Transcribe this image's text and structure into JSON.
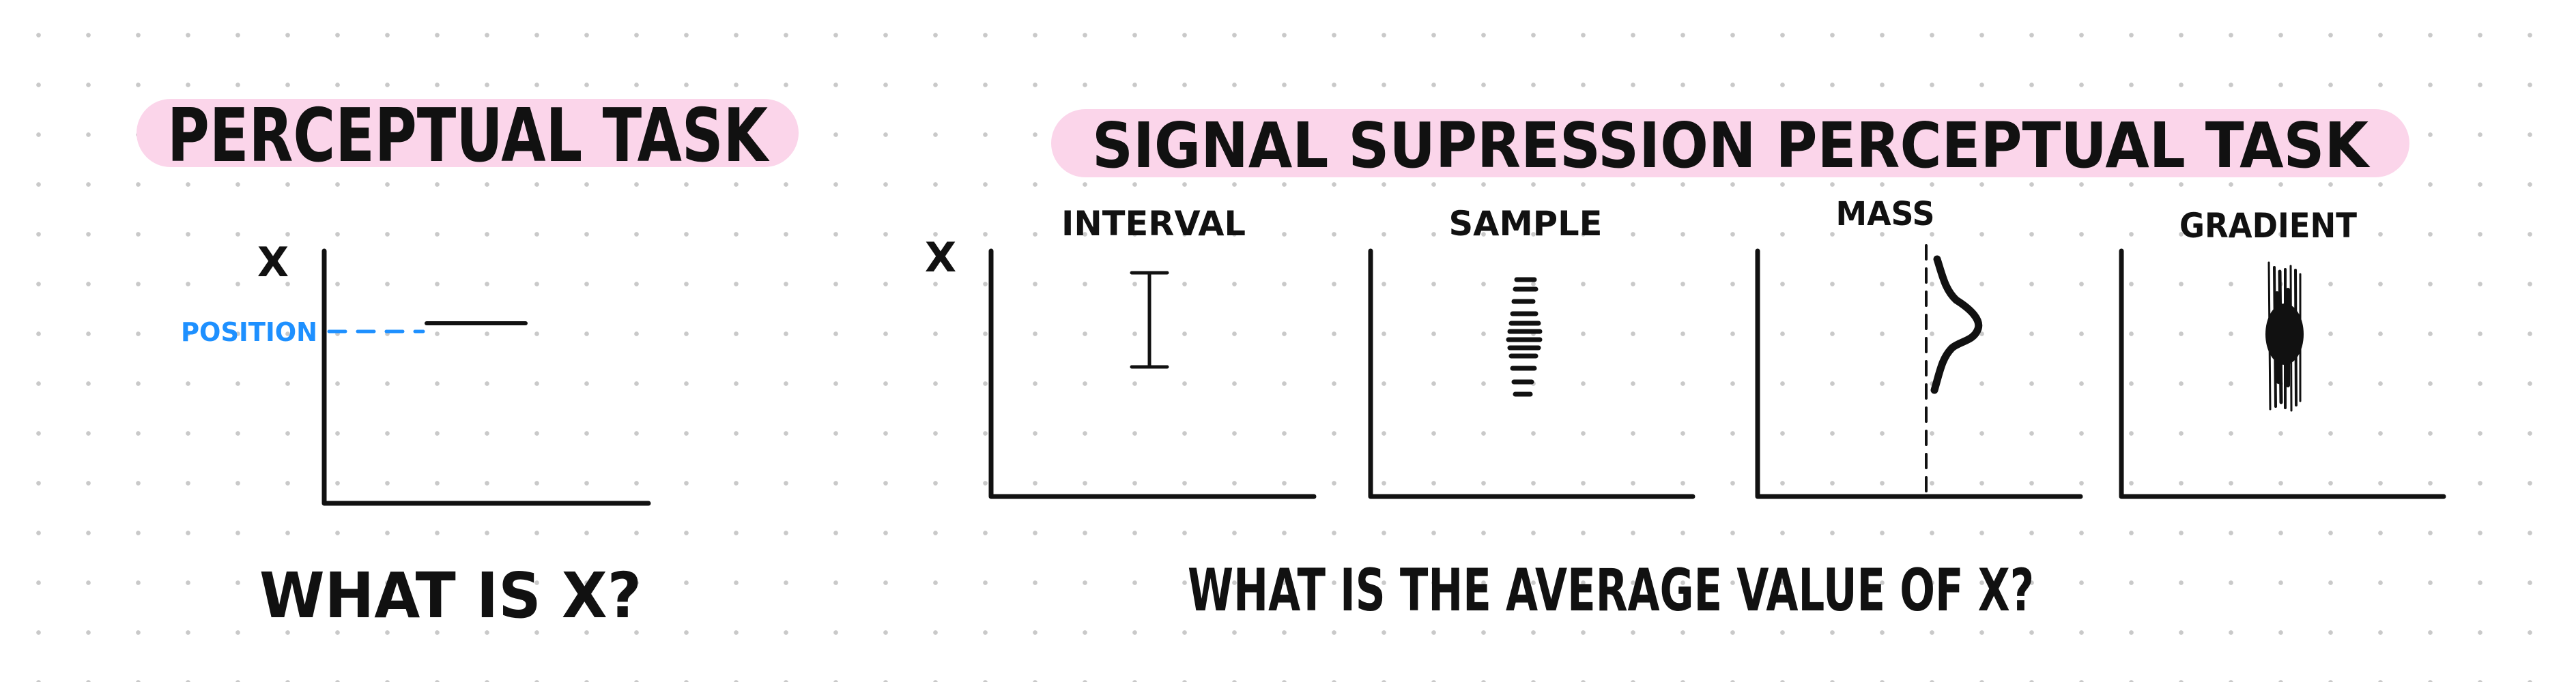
{
  "left_panel": {
    "title": "PERCEPTUAL TASK",
    "axis_label": "X",
    "position_label": "POSITION",
    "question": "WHAT IS X?"
  },
  "right_panel": {
    "title": "SIGNAL SUPRESSION PERCEPTUAL TASK",
    "axis_label": "X",
    "panels": [
      {
        "label": "INTERVAL"
      },
      {
        "label": "SAMPLE"
      },
      {
        "label": "MASS"
      },
      {
        "label": "GRADIENT"
      }
    ],
    "question": "WHAT IS THE AVERAGE VALUE OF X?"
  },
  "colors": {
    "highlight": "#fbd5ea",
    "ink": "#111111",
    "annotation": "#1e90ff",
    "grid_dot": "#c9c9c9"
  }
}
